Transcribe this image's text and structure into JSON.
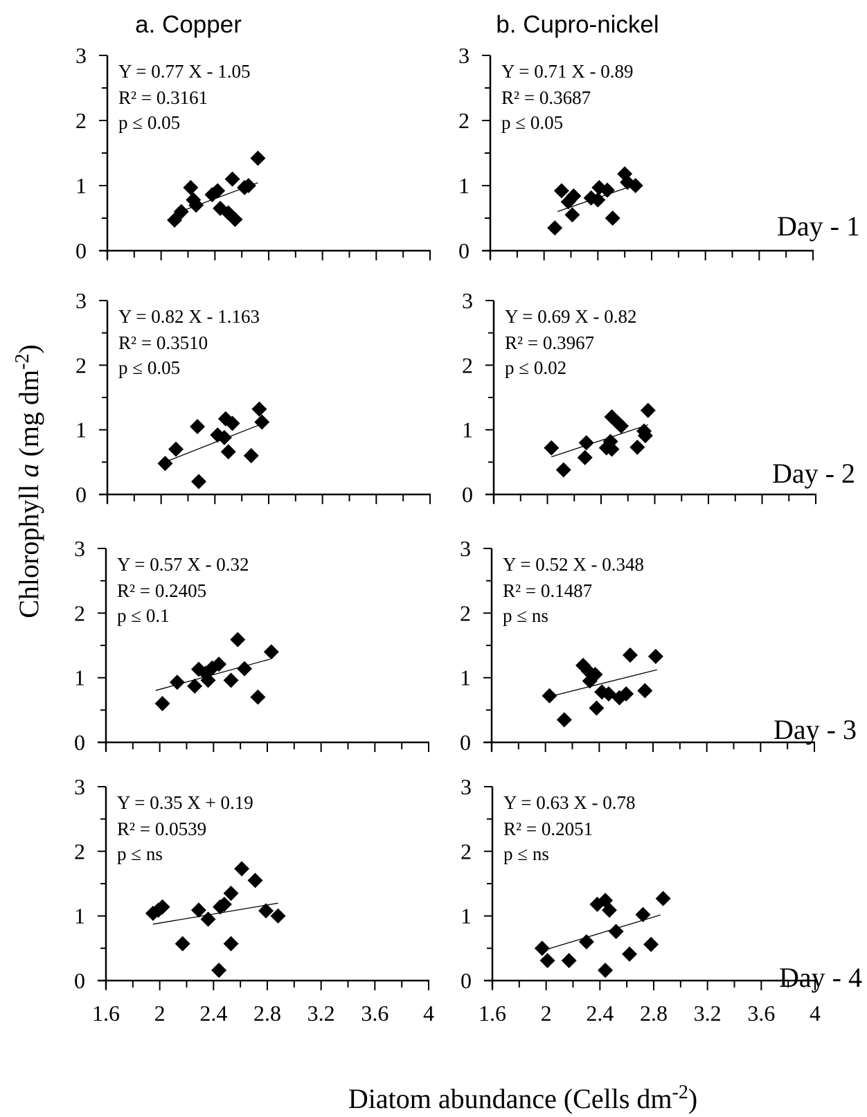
{
  "figure": {
    "column_titles": [
      "a. Copper",
      "b. Cupro-nickel"
    ],
    "y_axis_title": {
      "text": "Chlorophyll",
      "italic": "a",
      "unit": "(mg dm",
      "exponent": "-2",
      "close": ")"
    },
    "x_axis_title": {
      "text": "Diatom abundance (Cells dm",
      "exponent": "-2",
      "close": ")"
    },
    "day_labels": [
      "Day - 1",
      "Day - 2",
      "Day - 3",
      "Day - 4"
    ]
  },
  "chart_data": [
    {
      "type": "scatter",
      "panel": "a. Copper / Day - 1",
      "xlim": [
        1.6,
        4
      ],
      "ylim": [
        0,
        3
      ],
      "x_ticks": [
        "1.6",
        "2",
        "2.4",
        "2.8",
        "3.2",
        "3.6",
        "4"
      ],
      "y_ticks": [
        "0",
        "1",
        "2",
        "3"
      ],
      "equation": "Y = 0.77 X - 1.05",
      "r2": "R² = 0.3161",
      "p": "p ≤ 0.05",
      "fit": {
        "slope": 0.77,
        "intercept": -1.05,
        "x_range": [
          2.1,
          2.72
        ]
      },
      "points": [
        [
          2.1,
          0.47
        ],
        [
          2.15,
          0.6
        ],
        [
          2.22,
          0.97
        ],
        [
          2.24,
          0.78
        ],
        [
          2.26,
          0.7
        ],
        [
          2.38,
          0.86
        ],
        [
          2.42,
          0.92
        ],
        [
          2.44,
          0.65
        ],
        [
          2.5,
          0.58
        ],
        [
          2.53,
          1.1
        ],
        [
          2.55,
          0.48
        ],
        [
          2.62,
          0.97
        ],
        [
          2.65,
          1.0
        ],
        [
          2.72,
          1.42
        ]
      ]
    },
    {
      "type": "scatter",
      "panel": "b. Cupro-nickel / Day - 1",
      "xlim": [
        1.6,
        4
      ],
      "ylim": [
        0,
        3
      ],
      "x_ticks": [
        "1.6",
        "2",
        "2.4",
        "2.8",
        "3.2",
        "3.6",
        "4"
      ],
      "y_ticks": [
        "0",
        "1",
        "2",
        "3"
      ],
      "equation": "Y = 0.71 X - 0.89",
      "r2": "R² = 0.3687",
      "p": "p ≤ 0.05",
      "fit": {
        "slope": 0.71,
        "intercept": -0.89,
        "x_range": [
          2.1,
          2.62
        ]
      },
      "points": [
        [
          2.08,
          0.35
        ],
        [
          2.13,
          0.92
        ],
        [
          2.18,
          0.75
        ],
        [
          2.21,
          0.55
        ],
        [
          2.22,
          0.84
        ],
        [
          2.35,
          0.81
        ],
        [
          2.4,
          0.78
        ],
        [
          2.41,
          0.97
        ],
        [
          2.47,
          0.93
        ],
        [
          2.51,
          0.5
        ],
        [
          2.6,
          1.18
        ],
        [
          2.62,
          1.05
        ],
        [
          2.68,
          1.0
        ]
      ]
    },
    {
      "type": "scatter",
      "panel": "a. Copper / Day - 2",
      "xlim": [
        1.6,
        4
      ],
      "ylim": [
        0,
        3
      ],
      "x_ticks": [
        "1.6",
        "2",
        "2.4",
        "2.8",
        "3.2",
        "3.6",
        "4"
      ],
      "y_ticks": [
        "0",
        "1",
        "2",
        "3"
      ],
      "equation": "Y = 0.82 X - 1.163",
      "r2": "R² = 0.3510",
      "p": "p ≤ 0.05",
      "fit": {
        "slope": 0.82,
        "intercept": -1.163,
        "x_range": [
          2.05,
          2.75
        ]
      },
      "points": [
        [
          2.03,
          0.48
        ],
        [
          2.11,
          0.7
        ],
        [
          2.27,
          1.05
        ],
        [
          2.28,
          0.2
        ],
        [
          2.42,
          0.92
        ],
        [
          2.47,
          0.88
        ],
        [
          2.48,
          1.17
        ],
        [
          2.5,
          0.66
        ],
        [
          2.53,
          1.1
        ],
        [
          2.67,
          0.6
        ],
        [
          2.73,
          1.32
        ],
        [
          2.75,
          1.12
        ]
      ]
    },
    {
      "type": "scatter",
      "panel": "b. Cupro-nickel / Day - 2",
      "xlim": [
        1.6,
        4
      ],
      "ylim": [
        0,
        3
      ],
      "x_ticks": [
        "1.6",
        "2",
        "2.4",
        "2.8",
        "3.2",
        "3.6",
        "4"
      ],
      "y_ticks": [
        "0",
        "1",
        "2",
        "3"
      ],
      "equation": "Y = 0.69 X - 0.82",
      "r2": "R² = 0.3967",
      "p": "p ≤ 0.02",
      "fit": {
        "slope": 0.69,
        "intercept": -0.82,
        "x_range": [
          2.03,
          2.75
        ]
      },
      "points": [
        [
          2.03,
          0.72
        ],
        [
          2.12,
          0.38
        ],
        [
          2.29,
          0.8
        ],
        [
          2.28,
          0.57
        ],
        [
          2.44,
          0.72
        ],
        [
          2.47,
          0.82
        ],
        [
          2.48,
          0.7
        ],
        [
          2.48,
          1.2
        ],
        [
          2.52,
          1.12
        ],
        [
          2.55,
          1.06
        ],
        [
          2.67,
          0.73
        ],
        [
          2.72,
          0.98
        ],
        [
          2.73,
          0.91
        ],
        [
          2.75,
          1.3
        ]
      ]
    },
    {
      "type": "scatter",
      "panel": "a. Copper / Day - 3",
      "xlim": [
        1.6,
        4
      ],
      "ylim": [
        0,
        3
      ],
      "x_ticks": [
        "1.6",
        "2",
        "2.4",
        "2.8",
        "3.2",
        "3.6",
        "4"
      ],
      "y_ticks": [
        "0",
        "1",
        "2",
        "3"
      ],
      "equation": "Y = 0.57 X - 0.32",
      "r2": "R² = 0.2405",
      "p": "p ≤ 0.1",
      "fit": {
        "slope": 0.57,
        "intercept": -0.32,
        "x_range": [
          1.97,
          2.82
        ]
      },
      "points": [
        [
          2.02,
          0.6
        ],
        [
          2.13,
          0.93
        ],
        [
          2.26,
          0.87
        ],
        [
          2.29,
          1.13
        ],
        [
          2.34,
          1.07
        ],
        [
          2.36,
          0.96
        ],
        [
          2.39,
          1.15
        ],
        [
          2.44,
          1.21
        ],
        [
          2.53,
          0.96
        ],
        [
          2.58,
          1.59
        ],
        [
          2.63,
          1.14
        ],
        [
          2.73,
          0.7
        ],
        [
          2.83,
          1.4
        ]
      ]
    },
    {
      "type": "scatter",
      "panel": "b. Cupro-nickel / Day - 3",
      "xlim": [
        1.6,
        4
      ],
      "ylim": [
        0,
        3
      ],
      "x_ticks": [
        "1.6",
        "2",
        "2.4",
        "2.8",
        "3.2",
        "3.6",
        "4"
      ],
      "y_ticks": [
        "0",
        "1",
        "2",
        "3"
      ],
      "equation": "Y = 0.52 X - 0.348",
      "r2": "R² = 0.1487",
      "p": "p ≤ ns",
      "fit": {
        "slope": 0.52,
        "intercept": -0.348,
        "x_range": [
          2.03,
          2.83
        ]
      },
      "points": [
        [
          2.03,
          0.72
        ],
        [
          2.14,
          0.35
        ],
        [
          2.28,
          1.19
        ],
        [
          2.32,
          1.1
        ],
        [
          2.33,
          0.95
        ],
        [
          2.37,
          1.05
        ],
        [
          2.38,
          0.53
        ],
        [
          2.42,
          0.78
        ],
        [
          2.47,
          0.75
        ],
        [
          2.55,
          0.69
        ],
        [
          2.6,
          0.75
        ],
        [
          2.63,
          1.35
        ],
        [
          2.74,
          0.8
        ],
        [
          2.82,
          1.33
        ]
      ]
    },
    {
      "type": "scatter",
      "panel": "a. Copper / Day - 4",
      "xlim": [
        1.6,
        4
      ],
      "ylim": [
        0,
        3
      ],
      "x_ticks": [
        "1.6",
        "2",
        "2.4",
        "2.8",
        "3.2",
        "3.6",
        "4"
      ],
      "y_ticks": [
        "0",
        "1",
        "2",
        "3"
      ],
      "equation": "Y = 0.35 X + 0.19",
      "r2": "R² = 0.0539",
      "p": "p ≤ ns",
      "fit": {
        "slope": 0.35,
        "intercept": 0.19,
        "x_range": [
          1.95,
          2.88
        ]
      },
      "points": [
        [
          1.95,
          1.04
        ],
        [
          1.99,
          1.09
        ],
        [
          2.02,
          1.14
        ],
        [
          2.17,
          0.57
        ],
        [
          2.29,
          1.09
        ],
        [
          2.36,
          0.95
        ],
        [
          2.44,
          0.16
        ],
        [
          2.45,
          1.14
        ],
        [
          2.48,
          1.18
        ],
        [
          2.53,
          1.35
        ],
        [
          2.53,
          0.57
        ],
        [
          2.61,
          1.73
        ],
        [
          2.71,
          1.55
        ],
        [
          2.79,
          1.08
        ],
        [
          2.88,
          1.0
        ]
      ]
    },
    {
      "type": "scatter",
      "panel": "b. Cupro-nickel / Day - 4",
      "xlim": [
        1.6,
        4
      ],
      "ylim": [
        0,
        3
      ],
      "x_ticks": [
        "1.6",
        "2",
        "2.4",
        "2.8",
        "3.2",
        "3.6",
        "4"
      ],
      "y_ticks": [
        "0",
        "1",
        "2",
        "3"
      ],
      "equation": "Y = 0.63 X - 0.78",
      "r2": "R² = 0.2051",
      "p": "p ≤ ns",
      "fit": {
        "slope": 0.63,
        "intercept": -0.78,
        "x_range": [
          1.98,
          2.85
        ]
      },
      "points": [
        [
          1.97,
          0.5
        ],
        [
          2.01,
          0.31
        ],
        [
          2.17,
          0.31
        ],
        [
          2.3,
          0.6
        ],
        [
          2.38,
          1.18
        ],
        [
          2.44,
          1.24
        ],
        [
          2.44,
          0.16
        ],
        [
          2.47,
          1.09
        ],
        [
          2.52,
          0.76
        ],
        [
          2.62,
          0.41
        ],
        [
          2.72,
          1.02
        ],
        [
          2.78,
          0.56
        ],
        [
          2.87,
          1.27
        ]
      ]
    }
  ]
}
